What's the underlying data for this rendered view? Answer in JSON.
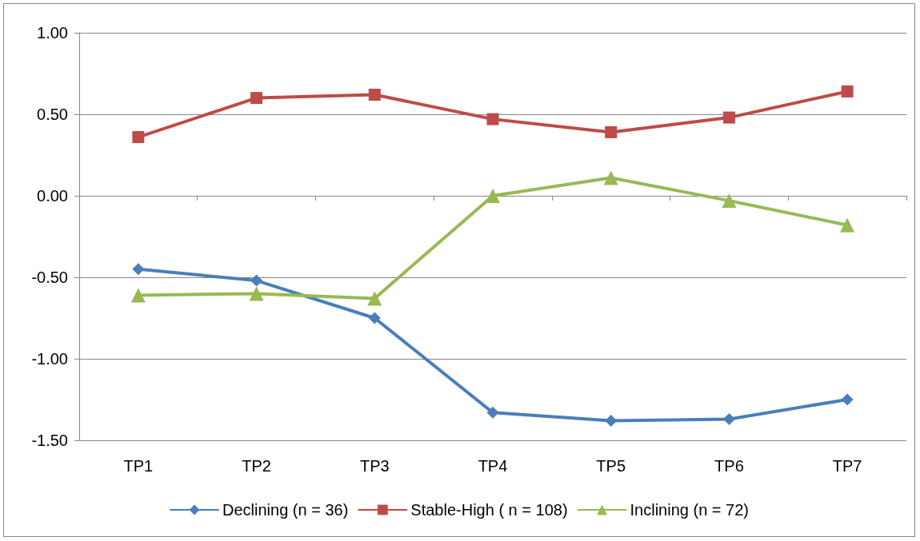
{
  "chart_data": {
    "type": "line",
    "categories": [
      "TP1",
      "TP2",
      "TP3",
      "TP4",
      "TP5",
      "TP6",
      "TP7"
    ],
    "series": [
      {
        "name": "Declining (n = 36)",
        "color": "#4a7ebb",
        "marker": "diamond",
        "values": [
          -0.45,
          -0.52,
          -0.75,
          -1.33,
          -1.38,
          -1.37,
          -1.25
        ]
      },
      {
        "name": "Stable-High ( n = 108)",
        "color": "#be4b48",
        "marker": "square",
        "values": [
          0.36,
          0.6,
          0.62,
          0.47,
          0.39,
          0.48,
          0.64
        ]
      },
      {
        "name": "Inclining (n = 72)",
        "color": "#98b954",
        "marker": "triangle",
        "values": [
          -0.61,
          -0.6,
          -0.63,
          0.0,
          0.11,
          -0.03,
          -0.18
        ]
      }
    ],
    "ylim": [
      -1.5,
      1.0
    ],
    "yticks": [
      {
        "value": -1.5,
        "label": "-1.50"
      },
      {
        "value": -1.0,
        "label": "-1.00"
      },
      {
        "value": -0.5,
        "label": "-0.50"
      },
      {
        "value": 0,
        "label": "0.00"
      },
      {
        "value": 0.5,
        "label": "0.50"
      },
      {
        "value": 1.0,
        "label": "1.00"
      }
    ],
    "grid": "y",
    "legend": "bottom",
    "line_style": "solid"
  }
}
